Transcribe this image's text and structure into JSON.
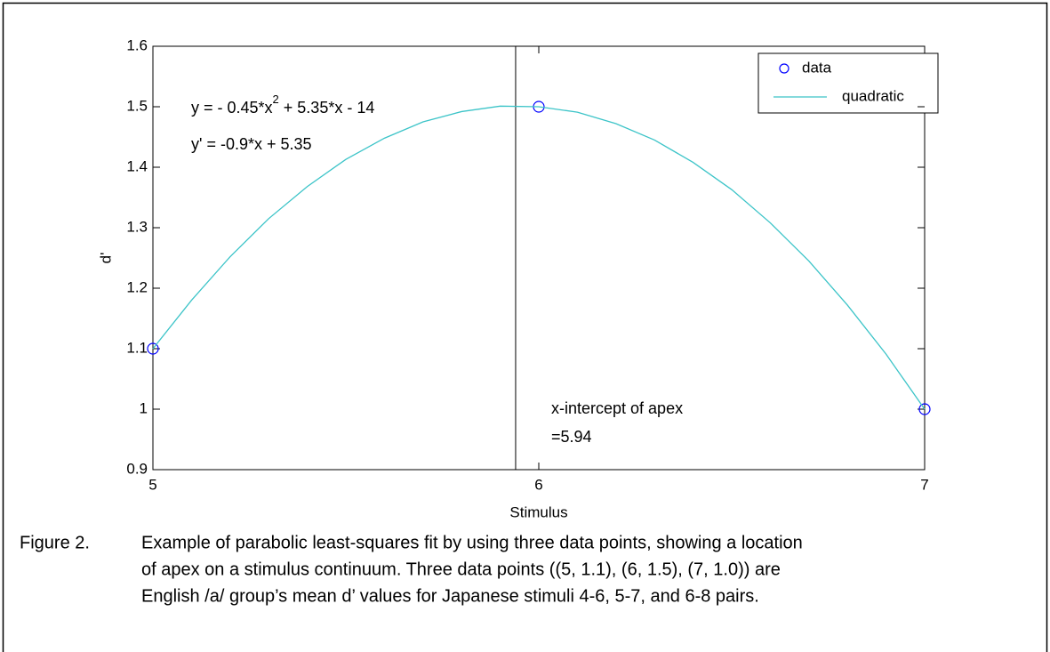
{
  "chart_data": {
    "type": "line",
    "xlabel": "Stimulus",
    "ylabel": "d'",
    "xlim": [
      5,
      7
    ],
    "xticks": [
      5,
      6,
      7
    ],
    "ylim": [
      0.9,
      1.6
    ],
    "yticks": [
      0.9,
      1,
      1.1,
      1.2,
      1.3,
      1.4,
      1.5,
      1.6
    ],
    "legend": "upper right",
    "series": [
      {
        "name": "data",
        "color": "#0000ff",
        "marker": "circle",
        "x": [
          5,
          6,
          7
        ],
        "values": [
          1.1,
          1.5,
          1.0
        ]
      },
      {
        "name": "quadratic",
        "color": "#3cc4c8",
        "marker": "none",
        "x": [
          5,
          5.1,
          5.2,
          5.3,
          5.4,
          5.5,
          5.6,
          5.7,
          5.8,
          5.9,
          6,
          6.1,
          6.2,
          6.3,
          6.4,
          6.5,
          6.6,
          6.7,
          6.8,
          6.9,
          7
        ],
        "values": [
          1.1,
          1.18,
          1.252,
          1.315,
          1.368,
          1.413,
          1.448,
          1.475,
          1.492,
          1.501,
          1.5,
          1.491,
          1.472,
          1.445,
          1.408,
          1.363,
          1.308,
          1.245,
          1.172,
          1.091,
          1.0
        ]
      }
    ],
    "vline": {
      "x": 5.94,
      "color": "#000000"
    },
    "equation": {
      "before": "y = - 0.45*x",
      "sup": "2",
      "after": " + 5.35*x - 14"
    },
    "derivative": "y' = -0.9*x + 5.35",
    "annotation": [
      "x-intercept of apex",
      "=5.94"
    ]
  },
  "caption": {
    "label": "Figure 2.",
    "lines": [
      "Example of parabolic least-squares fit by using three data points, showing a location",
      "of apex on a stimulus continuum.  Three data points ((5, 1.1), (6, 1.5), (7, 1.0)) are",
      "English /a/ group’s mean d’ values for Japanese stimuli 4-6, 5-7, and 6-8 pairs."
    ]
  }
}
